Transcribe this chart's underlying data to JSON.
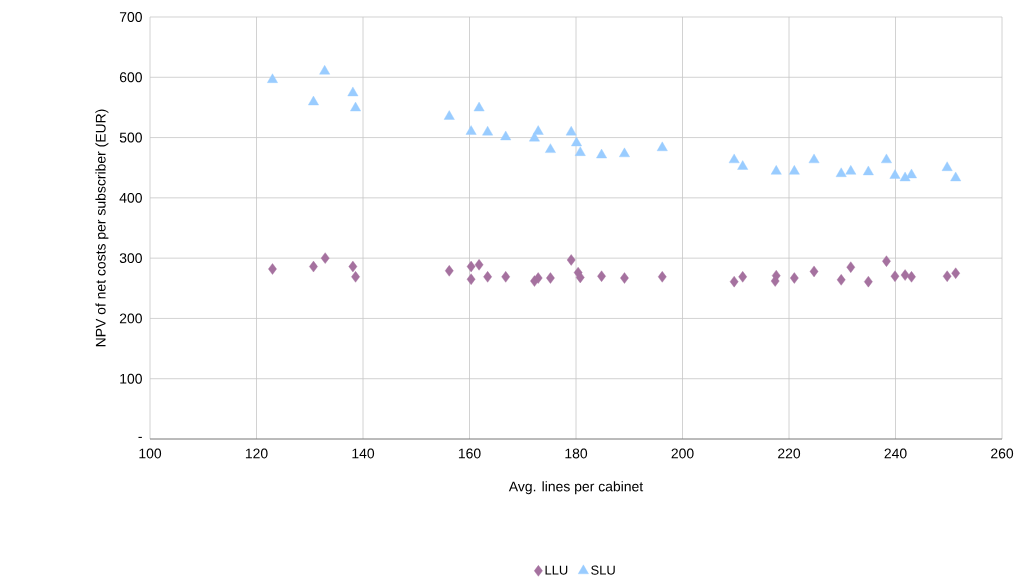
{
  "chart_data": {
    "type": "scatter",
    "xlabel": "Avg. lines per cabinet",
    "ylabel": "NPV of net costs per subscriber (EUR)",
    "xlim": [
      100,
      260
    ],
    "xticks": [
      100,
      120,
      140,
      160,
      180,
      200,
      220,
      240,
      260
    ],
    "ylim": [
      0,
      700
    ],
    "yticks": [
      {
        "value": 0,
        "label": "-"
      },
      100,
      200,
      300,
      400,
      500,
      600,
      700
    ],
    "grid": true,
    "legend": "bottom",
    "series": [
      {
        "name": "LLU",
        "color": "#a5719f",
        "marker": "diamond",
        "x": [
          123.0,
          130.7,
          132.9,
          138.1,
          138.6,
          156.2,
          160.3,
          161.8,
          160.3,
          163.4,
          166.8,
          172.2,
          172.9,
          175.2,
          179.1,
          180.4,
          180.8,
          184.8,
          189.1,
          196.2,
          209.7,
          211.3,
          217.6,
          217.4,
          221.0,
          224.7,
          229.8,
          231.6,
          234.9,
          238.3,
          239.9,
          241.8,
          243.0,
          249.7,
          251.3
        ],
        "values": [
          282,
          286,
          300,
          286,
          269,
          279,
          286,
          289,
          265,
          269,
          269,
          262,
          267,
          267,
          297,
          276,
          268,
          270,
          267,
          269,
          261,
          269,
          271,
          262,
          267,
          278,
          264,
          285,
          261,
          295,
          270,
          272,
          269,
          270,
          275
        ]
      },
      {
        "name": "SLU",
        "color": "#99ccff",
        "marker": "triangle",
        "x": [
          123.0,
          132.8,
          130.7,
          138.1,
          138.6,
          156.2,
          161.8,
          160.3,
          163.4,
          166.8,
          172.9,
          172.2,
          175.2,
          179.1,
          180.1,
          180.8,
          184.8,
          189.1,
          196.2,
          209.7,
          211.3,
          217.6,
          221.0,
          224.7,
          229.8,
          231.6,
          234.9,
          238.3,
          239.9,
          241.8,
          243.0,
          249.7,
          251.3
        ],
        "values": [
          596,
          610,
          559,
          574,
          549,
          535,
          549,
          510,
          509,
          501,
          510,
          499,
          480,
          509,
          491,
          475,
          471,
          473,
          483,
          463,
          452,
          444,
          444,
          463,
          440,
          444,
          443,
          463,
          437,
          433,
          438,
          450,
          433
        ]
      }
    ]
  }
}
